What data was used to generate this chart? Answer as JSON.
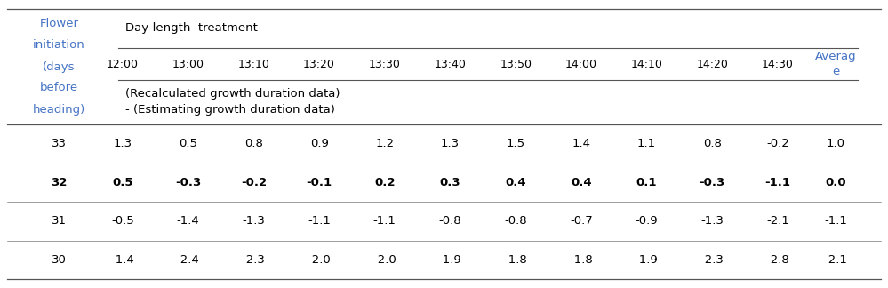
{
  "col_header_row1": "Day-length  treatment",
  "col_header_row2": [
    "12:00",
    "13:00",
    "13:10",
    "13:20",
    "13:30",
    "13:40",
    "13:50",
    "14:00",
    "14:10",
    "14:20",
    "14:30"
  ],
  "col_header_note1": "(Recalculated growth duration data)",
  "col_header_note2": "- (Estimating growth duration data)",
  "average_label_line1": "Averag",
  "average_label_line2": "e",
  "row_header_lines": [
    "Flower",
    "initiation",
    "(days",
    "before",
    "heading)"
  ],
  "rows": [
    {
      "key": "33",
      "bold": false,
      "values": [
        "1.3",
        "0.5",
        "0.8",
        "0.9",
        "1.2",
        "1.3",
        "1.5",
        "1.4",
        "1.1",
        "0.8",
        "-0.2"
      ],
      "avg": "1.0"
    },
    {
      "key": "32",
      "bold": true,
      "values": [
        "0.5",
        "-0.3",
        "-0.2",
        "-0.1",
        "0.2",
        "0.3",
        "0.4",
        "0.4",
        "0.1",
        "-0.3",
        "-1.1"
      ],
      "avg": "0.0"
    },
    {
      "key": "31",
      "bold": false,
      "values": [
        "-0.5",
        "-1.4",
        "-1.3",
        "-1.1",
        "-1.1",
        "-0.8",
        "-0.8",
        "-0.7",
        "-0.9",
        "-1.3",
        "-2.1"
      ],
      "avg": "-1.1"
    },
    {
      "key": "30",
      "bold": false,
      "values": [
        "-1.4",
        "-2.4",
        "-2.3",
        "-2.0",
        "-2.0",
        "-1.9",
        "-1.8",
        "-1.8",
        "-1.9",
        "-2.3",
        "-2.8"
      ],
      "avg": "-2.1"
    }
  ],
  "header_color": "#4472C4",
  "text_color": "#000000",
  "bg_color": "#ffffff",
  "font_size": 9.5,
  "line_color": "#555555"
}
